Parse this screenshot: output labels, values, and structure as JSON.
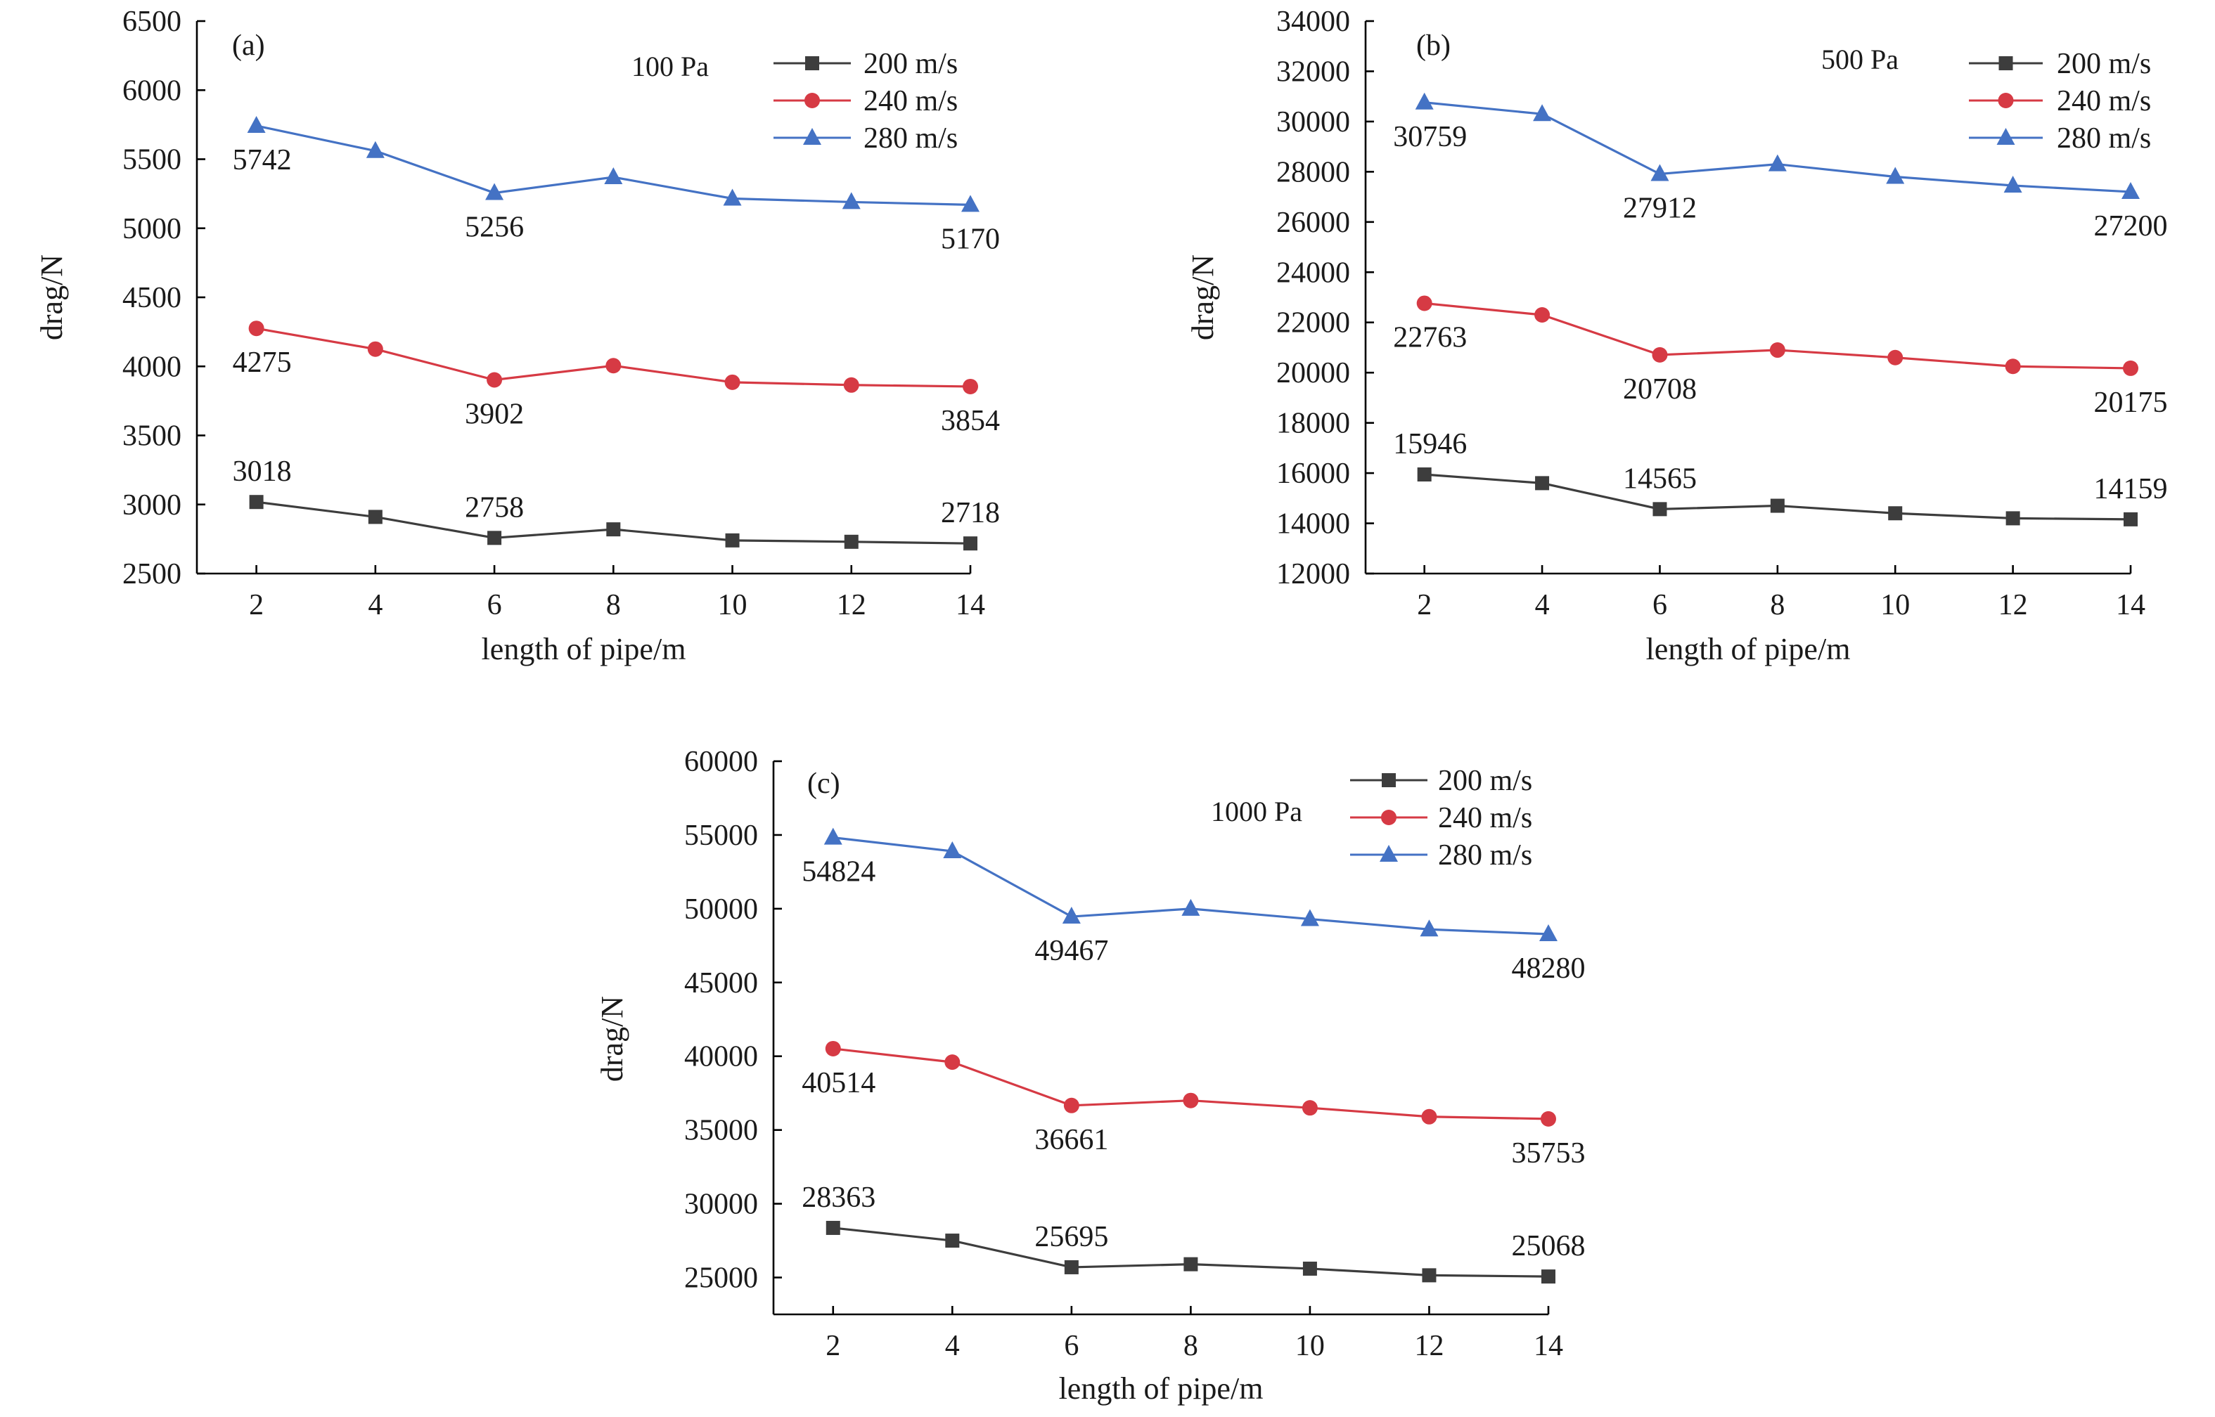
{
  "colors": {
    "series_200": "#3d3d3d",
    "series_240": "#d63a44",
    "series_280": "#4472c4"
  },
  "chart_data": [
    {
      "type": "line",
      "panel": "(a)",
      "annotation": "100 Pa",
      "xlabel": "length of pipe/m",
      "ylabel": "drag/N",
      "x": [
        2,
        4,
        6,
        8,
        10,
        12,
        14
      ],
      "xlim": [
        1,
        14
      ],
      "ylim": [
        2500,
        6500
      ],
      "yticks": [
        2500,
        3000,
        3500,
        4000,
        4500,
        5000,
        5500,
        6000,
        6500
      ],
      "xticks": [
        2,
        4,
        6,
        8,
        10,
        12,
        14
      ],
      "legend_position": "top-right",
      "grid": false,
      "series": [
        {
          "name": "200 m/s",
          "marker": "square",
          "color": "#3d3d3d",
          "values": [
            3018,
            2910,
            2758,
            2820,
            2740,
            2730,
            2718
          ],
          "labels": [
            {
              "text": "3018",
              "x": 2,
              "pos": "above"
            },
            {
              "text": "2758",
              "x": 6,
              "pos": "above"
            },
            {
              "text": "2718",
              "x": 14,
              "pos": "above"
            }
          ]
        },
        {
          "name": "240 m/s",
          "marker": "circle",
          "color": "#d63a44",
          "values": [
            4275,
            4125,
            3902,
            4005,
            3885,
            3865,
            3854
          ],
          "labels": [
            {
              "text": "4275",
              "x": 2,
              "pos": "below"
            },
            {
              "text": "3902",
              "x": 6,
              "pos": "below"
            },
            {
              "text": "3854",
              "x": 14,
              "pos": "below"
            }
          ]
        },
        {
          "name": "280 m/s",
          "marker": "triangle",
          "color": "#4472c4",
          "values": [
            5742,
            5560,
            5256,
            5370,
            5215,
            5190,
            5170
          ],
          "labels": [
            {
              "text": "5742",
              "x": 2,
              "pos": "below"
            },
            {
              "text": "5256",
              "x": 6,
              "pos": "below"
            },
            {
              "text": "5170",
              "x": 14,
              "pos": "below"
            }
          ]
        }
      ]
    },
    {
      "type": "line",
      "panel": "(b)",
      "annotation": "500 Pa",
      "xlabel": "length of pipe/m",
      "ylabel": "drag/N",
      "x": [
        2,
        4,
        6,
        8,
        10,
        12,
        14
      ],
      "xlim": [
        1,
        14
      ],
      "ylim": [
        12000,
        34000
      ],
      "yticks": [
        12000,
        14000,
        16000,
        18000,
        20000,
        22000,
        24000,
        26000,
        28000,
        30000,
        32000,
        34000
      ],
      "xticks": [
        2,
        4,
        6,
        8,
        10,
        12,
        14
      ],
      "legend_position": "top-right",
      "grid": false,
      "series": [
        {
          "name": "200 m/s",
          "marker": "square",
          "color": "#3d3d3d",
          "values": [
            15946,
            15600,
            14565,
            14700,
            14400,
            14200,
            14159
          ],
          "labels": [
            {
              "text": "15946",
              "x": 2,
              "pos": "above"
            },
            {
              "text": "14565",
              "x": 6,
              "pos": "above"
            },
            {
              "text": "14159",
              "x": 14,
              "pos": "above"
            }
          ]
        },
        {
          "name": "240 m/s",
          "marker": "circle",
          "color": "#d63a44",
          "values": [
            22763,
            22300,
            20708,
            20900,
            20600,
            20250,
            20175
          ],
          "labels": [
            {
              "text": "22763",
              "x": 2,
              "pos": "below"
            },
            {
              "text": "20708",
              "x": 6,
              "pos": "below"
            },
            {
              "text": "20175",
              "x": 14,
              "pos": "below"
            }
          ]
        },
        {
          "name": "280 m/s",
          "marker": "triangle",
          "color": "#4472c4",
          "values": [
            30759,
            30300,
            27912,
            28300,
            27800,
            27450,
            27200
          ],
          "labels": [
            {
              "text": "30759",
              "x": 2,
              "pos": "below"
            },
            {
              "text": "27912",
              "x": 6,
              "pos": "below"
            },
            {
              "text": "27200",
              "x": 14,
              "pos": "below"
            }
          ]
        }
      ]
    },
    {
      "type": "line",
      "panel": "(c)",
      "annotation": "1000 Pa",
      "xlabel": "length of pipe/m",
      "ylabel": "drag/N",
      "x": [
        2,
        4,
        6,
        8,
        10,
        12,
        14
      ],
      "xlim": [
        1,
        14
      ],
      "ylim": [
        22500,
        60000
      ],
      "yticks": [
        25000,
        30000,
        35000,
        40000,
        45000,
        50000,
        55000,
        60000
      ],
      "xticks": [
        2,
        4,
        6,
        8,
        10,
        12,
        14
      ],
      "legend_position": "top-right",
      "grid": false,
      "series": [
        {
          "name": "200 m/s",
          "marker": "square",
          "color": "#3d3d3d",
          "values": [
            28363,
            27500,
            25695,
            25900,
            25600,
            25150,
            25068
          ],
          "labels": [
            {
              "text": "28363",
              "x": 2,
              "pos": "above"
            },
            {
              "text": "25695",
              "x": 6,
              "pos": "above"
            },
            {
              "text": "25068",
              "x": 14,
              "pos": "above"
            }
          ]
        },
        {
          "name": "240 m/s",
          "marker": "circle",
          "color": "#d63a44",
          "values": [
            40514,
            39600,
            36661,
            37000,
            36500,
            35900,
            35753
          ],
          "labels": [
            {
              "text": "40514",
              "x": 2,
              "pos": "below"
            },
            {
              "text": "36661",
              "x": 6,
              "pos": "below"
            },
            {
              "text": "35753",
              "x": 14,
              "pos": "below"
            }
          ]
        },
        {
          "name": "280 m/s",
          "marker": "triangle",
          "color": "#4472c4",
          "values": [
            54824,
            53900,
            49467,
            50000,
            49300,
            48600,
            48280
          ],
          "labels": [
            {
              "text": "54824",
              "x": 2,
              "pos": "below"
            },
            {
              "text": "49467",
              "x": 6,
              "pos": "below"
            },
            {
              "text": "48280",
              "x": 14,
              "pos": "below"
            }
          ]
        }
      ]
    }
  ]
}
